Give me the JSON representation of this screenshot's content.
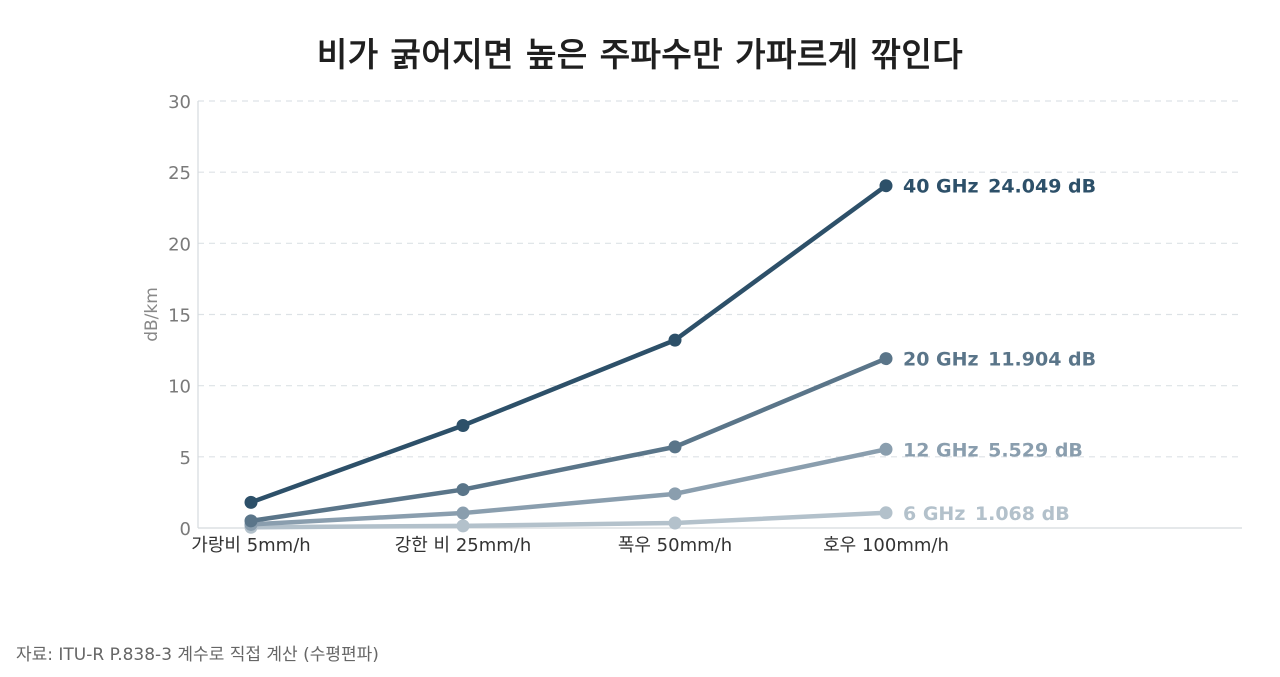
{
  "chart_data": {
    "type": "line",
    "title": "비가 굵어지면 높은 주파수만 가파르게 깎인다",
    "xlabel": "",
    "ylabel": "dB/km",
    "categories": [
      "가랑비 5mm/h",
      "강한 비 25mm/h",
      "폭우 50mm/h",
      "호우 100mm/h"
    ],
    "ylim": [
      0,
      30
    ],
    "yticks": [
      0,
      5,
      10,
      15,
      20,
      25,
      30
    ],
    "grid": "horizontal-dashed",
    "series": [
      {
        "name": "40 GHz",
        "values": [
          1.8,
          7.2,
          13.2,
          24.049
        ],
        "end_label": "24.049 dB",
        "color": "#2d5069"
      },
      {
        "name": "20 GHz",
        "values": [
          0.5,
          2.7,
          5.7,
          11.904
        ],
        "end_label": "11.904 dB",
        "color": "#5a7589"
      },
      {
        "name": "12 GHz",
        "values": [
          0.25,
          1.05,
          2.4,
          5.529
        ],
        "end_label": "5.529 dB",
        "color": "#8a9eae"
      },
      {
        "name": "6 GHz",
        "values": [
          0.05,
          0.15,
          0.35,
          1.068
        ],
        "end_label": "1.068 dB",
        "color": "#b3c1cb"
      }
    ]
  },
  "source": "자료: ITU-R P.838-3 계수로 직접 계산 (수평편파)"
}
